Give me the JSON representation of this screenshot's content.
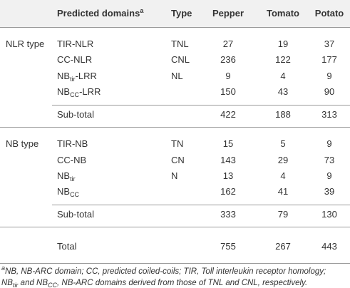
{
  "header": {
    "domain": "Predicted domains",
    "domain_sup": "a",
    "type": "Type",
    "columns": [
      "Pepper",
      "Tomato",
      "Potato"
    ]
  },
  "groups": [
    {
      "label": "NLR type",
      "rows": [
        {
          "domain": "TIR-NLR",
          "type": "TNL",
          "values": [
            "27",
            "19",
            "37"
          ]
        },
        {
          "domain": "CC-NLR",
          "type": "CNL",
          "values": [
            "236",
            "122",
            "177"
          ]
        },
        {
          "domain": {
            "base": "NB",
            "sub": "tir",
            "suffix": "-LRR"
          },
          "type": "NL",
          "values": [
            "9",
            "4",
            "9"
          ]
        },
        {
          "domain": {
            "base": "NB",
            "sub": "CC",
            "suffix": "-LRR"
          },
          "values": [
            "150",
            "43",
            "90"
          ]
        }
      ],
      "subtotal": {
        "label": "Sub-total",
        "values": [
          "422",
          "188",
          "313"
        ]
      }
    },
    {
      "label": "NB type",
      "rows": [
        {
          "domain": "TIR-NB",
          "type": "TN",
          "values": [
            "15",
            "5",
            "9"
          ]
        },
        {
          "domain": "CC-NB",
          "type": "CN",
          "values": [
            "143",
            "29",
            "73"
          ]
        },
        {
          "domain": {
            "base": "NB",
            "sub": "tir"
          },
          "type": "N",
          "values": [
            "13",
            "4",
            "9"
          ]
        },
        {
          "domain": {
            "base": "NB",
            "sub": "CC"
          },
          "values": [
            "162",
            "41",
            "39"
          ]
        }
      ],
      "subtotal": {
        "label": "Sub-total",
        "values": [
          "333",
          "79",
          "130"
        ]
      }
    }
  ],
  "total": {
    "label": "Total",
    "values": [
      "755",
      "267",
      "443"
    ]
  },
  "footnote": {
    "sup": "a",
    "line1": "NB, NB-ARC domain; CC, predicted coiled-coils; TIR, Toll interleukin receptor homology;",
    "line2": [
      "NB",
      {
        "sub": "tir"
      },
      " and NB",
      {
        "sub": "CC"
      },
      ", NB-ARC domains derived from those of TNL and CNL, respectively."
    ]
  }
}
